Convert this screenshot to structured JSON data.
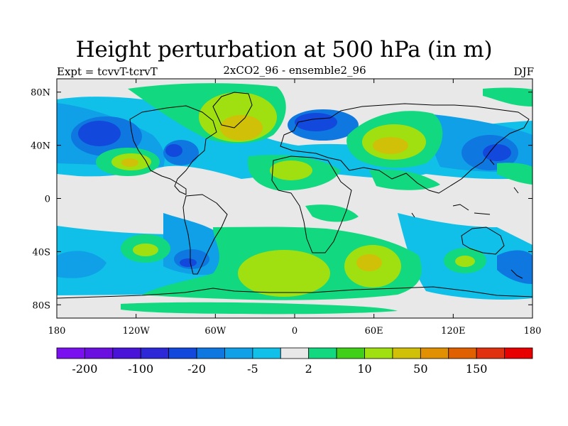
{
  "title": "Height perturbation at 500 hPa (in m)",
  "left_label": "Expt = tcvvT-tcrvT",
  "center_label": "2xCO2_96 - ensemble2_96",
  "right_label": "DJF",
  "map": {
    "projection": "cylindrical-equidistant",
    "lon_range": [
      -180,
      180
    ],
    "lat_range": [
      -90,
      90
    ],
    "background_color": "#e8e8e8",
    "lat_ticks": [
      {
        "value": 80,
        "label": "80N"
      },
      {
        "value": 40,
        "label": "40N"
      },
      {
        "value": 0,
        "label": "0"
      },
      {
        "value": -40,
        "label": "40S"
      },
      {
        "value": -80,
        "label": "80S"
      }
    ],
    "lon_ticks": [
      {
        "value": -180,
        "label": "180"
      },
      {
        "value": -120,
        "label": "120W"
      },
      {
        "value": -60,
        "label": "60W"
      },
      {
        "value": 0,
        "label": "0"
      },
      {
        "value": 60,
        "label": "60E"
      },
      {
        "value": 120,
        "label": "120E"
      },
      {
        "value": 180,
        "label": "180"
      }
    ]
  },
  "colorbar": {
    "colors": [
      "#7a0ff0",
      "#6a0fe0",
      "#4a14d8",
      "#2c28d8",
      "#1248dc",
      "#0f78e0",
      "#0fa0e8",
      "#10c0e8",
      "#e8e8e8",
      "#12d880",
      "#40d018",
      "#a0e010",
      "#d0c008",
      "#e09000",
      "#e06000",
      "#e03010",
      "#e80000"
    ],
    "labels": [
      {
        "boundary": 1,
        "text": "-200"
      },
      {
        "boundary": 3,
        "text": "-100"
      },
      {
        "boundary": 5,
        "text": "-20"
      },
      {
        "boundary": 7,
        "text": "-5"
      },
      {
        "boundary": 9,
        "text": "2"
      },
      {
        "boundary": 11,
        "text": "10"
      },
      {
        "boundary": 13,
        "text": "50"
      },
      {
        "boundary": 15,
        "text": "150"
      }
    ]
  }
}
